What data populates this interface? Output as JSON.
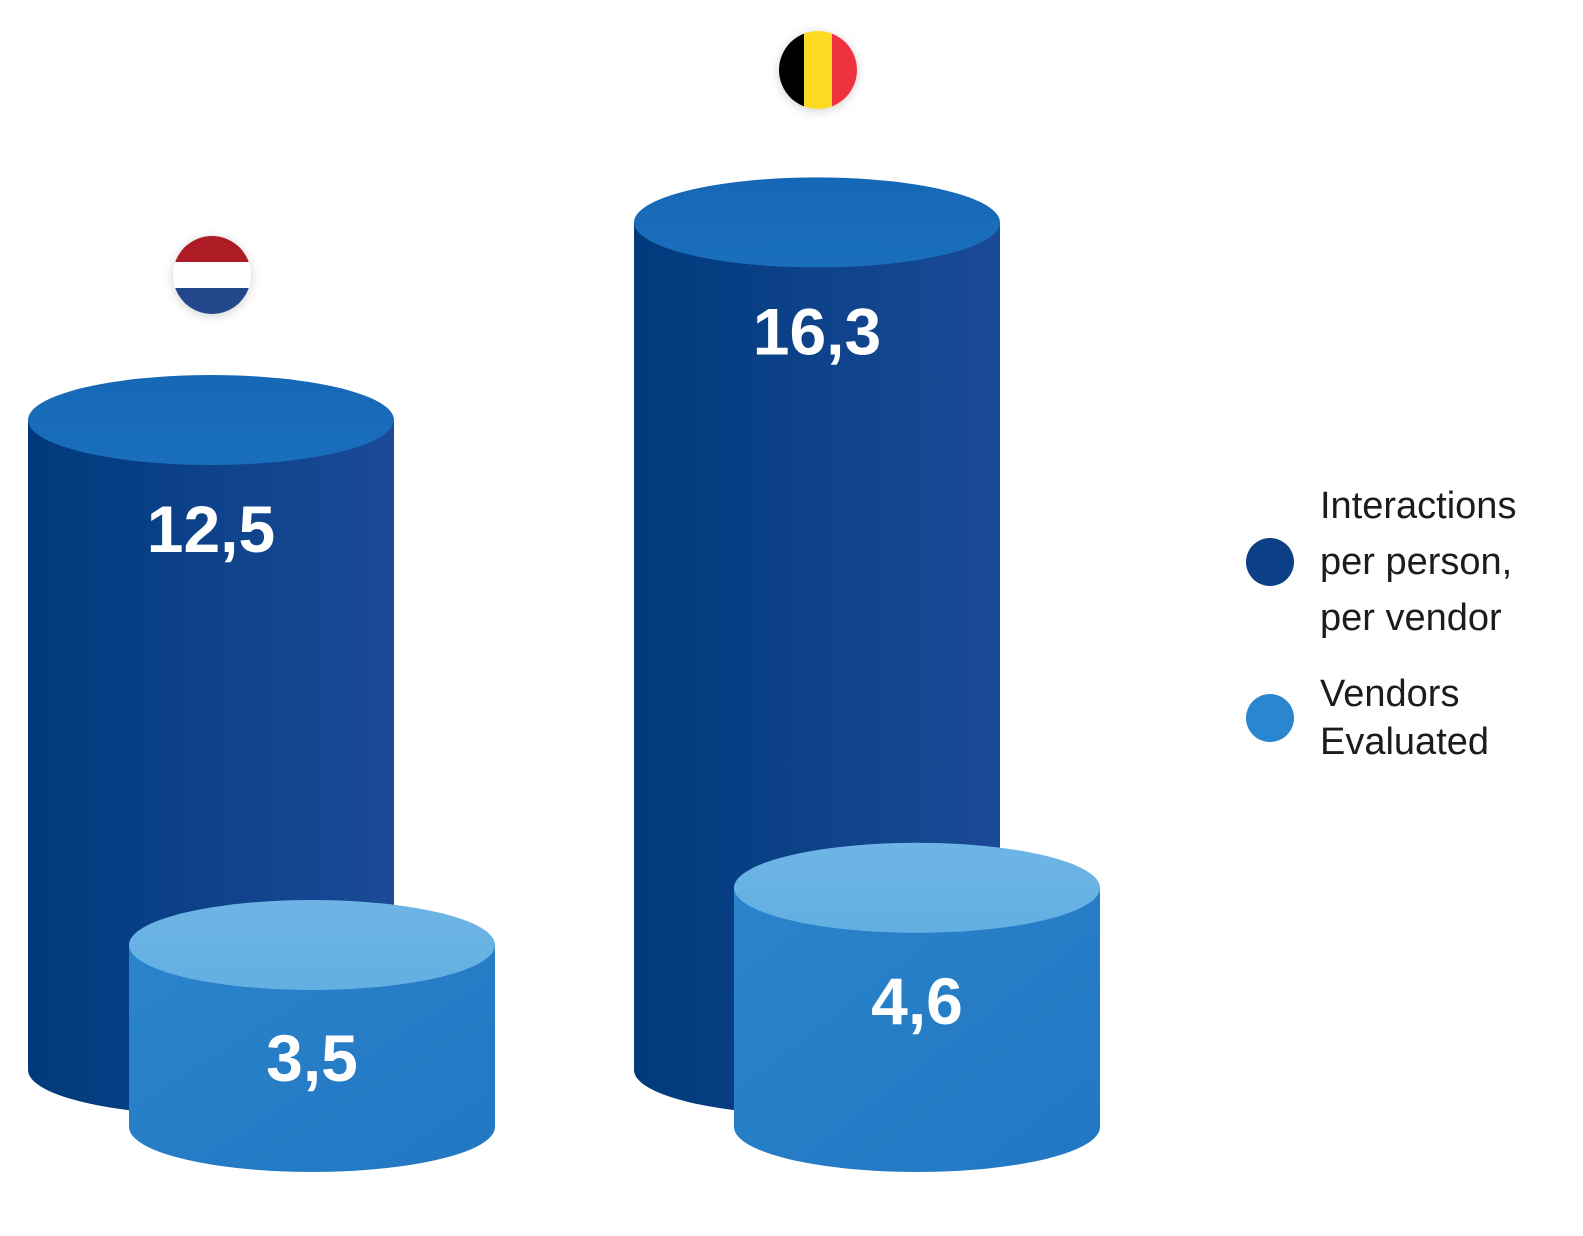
{
  "chart_data": {
    "type": "bar",
    "style": "3d-cylinder",
    "categories": [
      "Netherlands",
      "Belgium"
    ],
    "category_icons": [
      "netherlands-flag-icon",
      "belgium-flag-icon"
    ],
    "series": [
      {
        "name": "Interactions per person, per vendor",
        "values": [
          12.5,
          16.3
        ],
        "labels": [
          "12,5",
          "16,3"
        ],
        "color": "#0B3F86"
      },
      {
        "name": "Vendors Evaluated",
        "values": [
          3.5,
          4.6
        ],
        "labels": [
          "3,5",
          "4,6"
        ],
        "color": "#2581C9"
      }
    ],
    "legend": {
      "placement": "right",
      "items": [
        {
          "label": "Interactions\nper person,\nper vendor",
          "color": "#0B3F86"
        },
        {
          "label": "Vendors\nEvaluated",
          "color": "#2A86CE"
        }
      ]
    },
    "title": "",
    "xlabel": "",
    "ylabel": "",
    "grid": false
  }
}
